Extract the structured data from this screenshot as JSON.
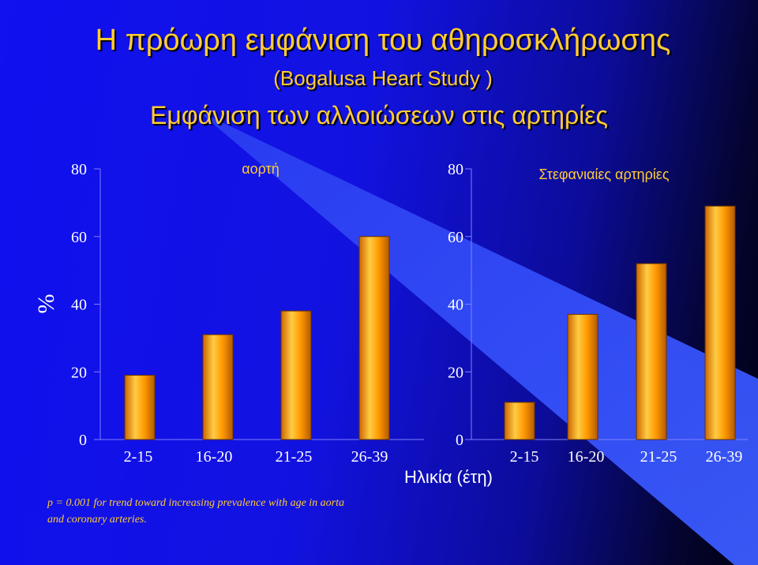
{
  "slide": {
    "title": "Η πρόωρη εμφάνιση του αθηροσκλήρωσης",
    "subtitle": "(Bogalusa Heart Study )",
    "heading": "Εμφάνιση των αλλοιώσεων στις αρτηρίες",
    "note_line1": "p = 0.001 for trend toward increasing prevalence with age in aorta",
    "note_line2": "and coronary arteries."
  },
  "colors": {
    "bar_main": "#ff9900",
    "bar_light": "#ffcc44",
    "bar_dark": "#cc6600",
    "text_accent": "#ffcc33"
  },
  "chart_data": [
    {
      "type": "bar",
      "title": "αορτή",
      "ylabel": "%",
      "xlabel": "",
      "categories": [
        "2-15",
        "16-20",
        "21-25",
        "26-39"
      ],
      "values": [
        19,
        31,
        38,
        60
      ],
      "ylim": [
        0,
        80
      ],
      "yticks": [
        0,
        20,
        40,
        60,
        80
      ],
      "grid": false
    },
    {
      "type": "bar",
      "title": "Στεφανιαίες αρτηρίες",
      "ylabel": "",
      "xlabel": "Ηλικία (έτη)",
      "categories": [
        "2-15",
        "16-20",
        "21-25",
        "26-39"
      ],
      "values": [
        11,
        37,
        52,
        69
      ],
      "ylim": [
        0,
        80
      ],
      "yticks": [
        0,
        20,
        40,
        60,
        80
      ],
      "grid": false
    }
  ]
}
